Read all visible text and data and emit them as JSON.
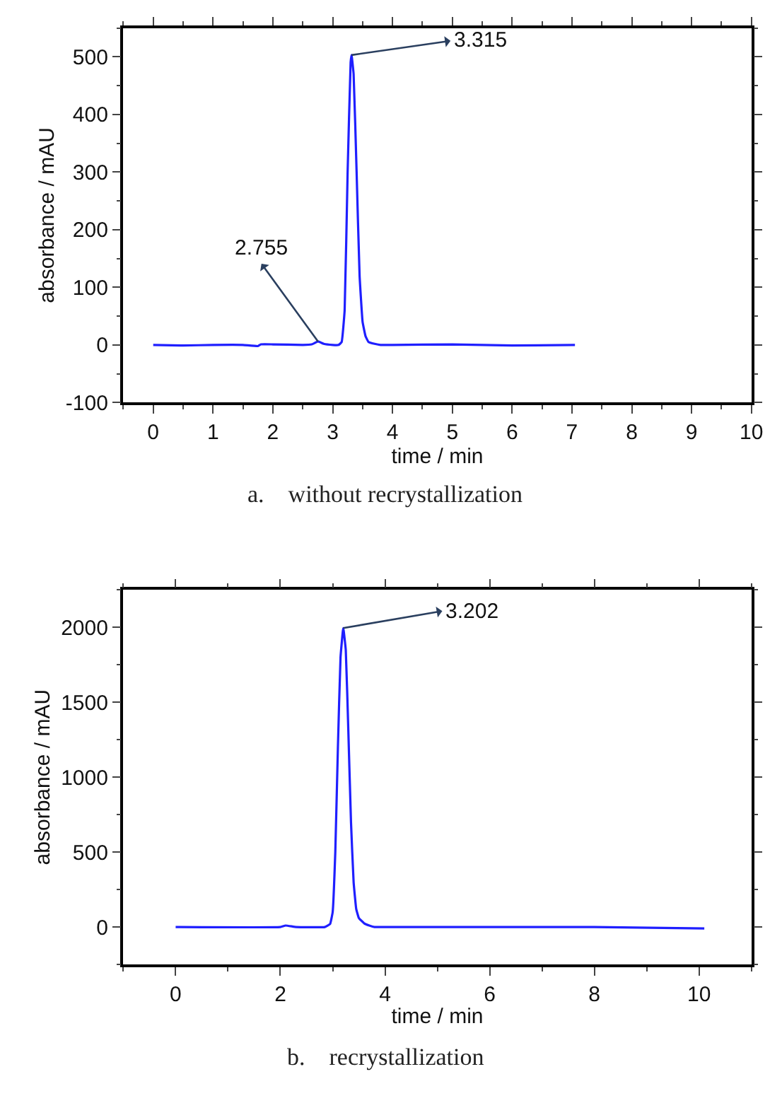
{
  "chart_data": [
    {
      "type": "line",
      "title": "a.    without recrystallization",
      "xlabel": "time / min",
      "ylabel": "absorbance / mAU",
      "x": [
        0,
        0.5,
        1,
        1.5,
        1.75,
        1.8,
        2,
        2.5,
        2.65,
        2.755,
        2.85,
        3.0,
        3.1,
        3.15,
        3.2,
        3.25,
        3.3,
        3.315,
        3.35,
        3.4,
        3.45,
        3.5,
        3.55,
        3.6,
        3.7,
        3.8,
        4,
        5,
        6,
        7.05
      ],
      "series": [
        {
          "color": "#1f1fff",
          "values": [
            0,
            -1,
            0,
            0,
            -2,
            1,
            1,
            0,
            1,
            6,
            2,
            0,
            0,
            5,
            60,
            300,
            490,
            503,
            470,
            300,
            120,
            40,
            15,
            5,
            2,
            0,
            0,
            1,
            -1,
            0
          ]
        }
      ],
      "xlim": [
        -0.5,
        10
      ],
      "xticks": [
        0,
        1,
        2,
        3,
        4,
        5,
        6,
        7,
        8,
        9,
        10
      ],
      "ylim": [
        -100,
        550
      ],
      "yticks": [
        -100,
        0,
        100,
        200,
        300,
        400,
        500
      ],
      "annotations": [
        {
          "text": "2.755",
          "x": 2.755,
          "y": 6
        },
        {
          "text": "3.315",
          "x": 3.315,
          "y": 503
        }
      ]
    },
    {
      "type": "line",
      "title": "b.    recrystallization",
      "xlabel": "time / min",
      "ylabel": "absorbance / mAU",
      "x": [
        0,
        2,
        2.1,
        2.3,
        2.85,
        2.95,
        3.0,
        3.05,
        3.1,
        3.15,
        3.202,
        3.25,
        3.3,
        3.35,
        3.4,
        3.45,
        3.5,
        3.6,
        3.7,
        3.8,
        4,
        5,
        8,
        10.1
      ],
      "series": [
        {
          "color": "#1f1fff",
          "values": [
            0,
            0,
            10,
            0,
            0,
            20,
            100,
            500,
            1200,
            1800,
            1995,
            1850,
            1300,
            700,
            300,
            120,
            60,
            25,
            10,
            0,
            0,
            0,
            0,
            -10
          ]
        }
      ],
      "xlim": [
        -1,
        11
      ],
      "xticks": [
        0,
        2,
        4,
        6,
        8,
        10
      ],
      "ylim": [
        -250,
        2250
      ],
      "yticks": [
        0,
        500,
        1000,
        1500,
        2000
      ],
      "annotations": [
        {
          "text": "3.202",
          "x": 3.202,
          "y": 1995
        }
      ]
    }
  ]
}
